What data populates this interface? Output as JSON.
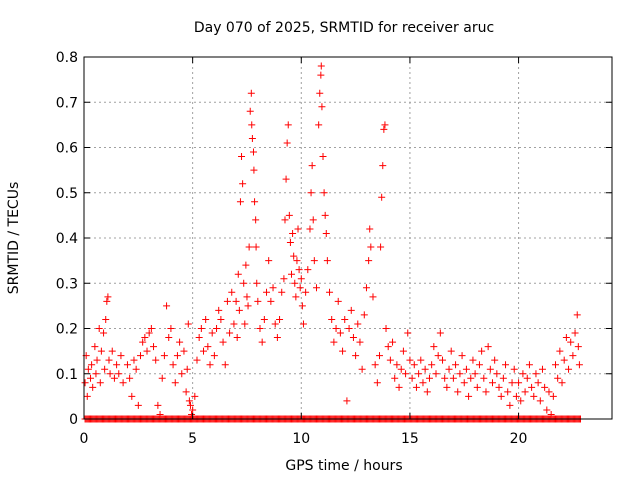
{
  "chart_data": {
    "type": "scatter",
    "title": "Day 070 of 2025, SRMTID for receiver aruc",
    "xlabel": "GPS time / hours",
    "ylabel": "SRMTID / TECUs",
    "xlim": [
      0,
      24.3
    ],
    "ylim": [
      0,
      0.8
    ],
    "x_ticks": [
      0,
      5,
      10,
      15,
      20
    ],
    "y_ticks": [
      0,
      0.1,
      0.2,
      0.3,
      0.4,
      0.5,
      0.6,
      0.7,
      0.8
    ],
    "x_tick_labels": [
      "0",
      "5",
      "10",
      "15",
      "20"
    ],
    "y_tick_labels": [
      "0",
      "0.1",
      "0.2",
      "0.3",
      "0.4",
      "0.5",
      "0.6",
      "0.7",
      "0.8"
    ],
    "grid": true,
    "marker": "+",
    "colors": {
      "points": "#ff0000",
      "grid": "#a0a0a0",
      "axes": "#000000"
    },
    "series": [
      {
        "name": "SRMTID",
        "points": [
          [
            0.05,
            0.08
          ],
          [
            0.1,
            0.14
          ],
          [
            0.15,
            0.05
          ],
          [
            0.2,
            0.11
          ],
          [
            0.3,
            0.09
          ],
          [
            0.35,
            0.12
          ],
          [
            0.4,
            0.07
          ],
          [
            0.5,
            0.16
          ],
          [
            0.55,
            0.1
          ],
          [
            0.6,
            0.13
          ],
          [
            0.7,
            0.2
          ],
          [
            0.75,
            0.08
          ],
          [
            0.8,
            0.15
          ],
          [
            0.9,
            0.19
          ],
          [
            0.95,
            0.11
          ],
          [
            1.0,
            0.22
          ],
          [
            1.05,
            0.26
          ],
          [
            1.1,
            0.27
          ],
          [
            1.15,
            0.13
          ],
          [
            1.2,
            0.1
          ],
          [
            1.3,
            0.15
          ],
          [
            1.4,
            0.09
          ],
          [
            1.5,
            0.12
          ],
          [
            1.6,
            0.1
          ],
          [
            1.7,
            0.14
          ],
          [
            1.8,
            0.08
          ],
          [
            2.0,
            0.12
          ],
          [
            2.1,
            0.09
          ],
          [
            2.2,
            0.05
          ],
          [
            2.3,
            0.13
          ],
          [
            2.4,
            0.11
          ],
          [
            2.5,
            0.03
          ],
          [
            2.6,
            0.14
          ],
          [
            2.7,
            0.17
          ],
          [
            2.8,
            0.18
          ],
          [
            2.9,
            0.15
          ],
          [
            3.0,
            0.19
          ],
          [
            3.1,
            0.2
          ],
          [
            3.2,
            0.16
          ],
          [
            3.3,
            0.13
          ],
          [
            3.4,
            0.03
          ],
          [
            3.5,
            0.01
          ],
          [
            3.6,
            0.09
          ],
          [
            3.7,
            0.14
          ],
          [
            3.8,
            0.25
          ],
          [
            3.9,
            0.18
          ],
          [
            4.0,
            0.2
          ],
          [
            4.1,
            0.12
          ],
          [
            4.2,
            0.08
          ],
          [
            4.3,
            0.14
          ],
          [
            4.4,
            0.17
          ],
          [
            4.5,
            0.1
          ],
          [
            4.6,
            0.15
          ],
          [
            4.7,
            0.06
          ],
          [
            4.75,
            0.11
          ],
          [
            4.8,
            0.21
          ],
          [
            4.85,
            0.04
          ],
          [
            4.9,
            0.03
          ],
          [
            4.95,
            0.01
          ],
          [
            5.0,
            0.02
          ],
          [
            5.1,
            0.05
          ],
          [
            5.2,
            0.13
          ],
          [
            5.3,
            0.18
          ],
          [
            5.4,
            0.2
          ],
          [
            5.5,
            0.15
          ],
          [
            5.6,
            0.22
          ],
          [
            5.7,
            0.16
          ],
          [
            5.8,
            0.12
          ],
          [
            5.9,
            0.19
          ],
          [
            6.0,
            0.14
          ],
          [
            6.1,
            0.2
          ],
          [
            6.2,
            0.24
          ],
          [
            6.3,
            0.22
          ],
          [
            6.4,
            0.17
          ],
          [
            6.5,
            0.12
          ],
          [
            6.6,
            0.26
          ],
          [
            6.7,
            0.19
          ],
          [
            6.8,
            0.28
          ],
          [
            6.9,
            0.21
          ],
          [
            7.0,
            0.26
          ],
          [
            7.05,
            0.18
          ],
          [
            7.1,
            0.32
          ],
          [
            7.15,
            0.24
          ],
          [
            7.2,
            0.48
          ],
          [
            7.25,
            0.58
          ],
          [
            7.3,
            0.52
          ],
          [
            7.35,
            0.3
          ],
          [
            7.4,
            0.21
          ],
          [
            7.45,
            0.34
          ],
          [
            7.5,
            0.27
          ],
          [
            7.55,
            0.25
          ],
          [
            7.6,
            0.38
          ],
          [
            7.65,
            0.68
          ],
          [
            7.7,
            0.72
          ],
          [
            7.72,
            0.65
          ],
          [
            7.75,
            0.62
          ],
          [
            7.8,
            0.59
          ],
          [
            7.82,
            0.55
          ],
          [
            7.85,
            0.48
          ],
          [
            7.9,
            0.44
          ],
          [
            7.92,
            0.38
          ],
          [
            7.95,
            0.3
          ],
          [
            8.0,
            0.26
          ],
          [
            8.1,
            0.2
          ],
          [
            8.2,
            0.17
          ],
          [
            8.3,
            0.22
          ],
          [
            8.4,
            0.28
          ],
          [
            8.5,
            0.35
          ],
          [
            8.6,
            0.26
          ],
          [
            8.7,
            0.29
          ],
          [
            8.8,
            0.21
          ],
          [
            8.9,
            0.18
          ],
          [
            9.0,
            0.22
          ],
          [
            9.1,
            0.28
          ],
          [
            9.2,
            0.31
          ],
          [
            9.25,
            0.44
          ],
          [
            9.3,
            0.53
          ],
          [
            9.35,
            0.61
          ],
          [
            9.4,
            0.65
          ],
          [
            9.45,
            0.45
          ],
          [
            9.5,
            0.39
          ],
          [
            9.55,
            0.32
          ],
          [
            9.6,
            0.41
          ],
          [
            9.65,
            0.36
          ],
          [
            9.7,
            0.3
          ],
          [
            9.75,
            0.27
          ],
          [
            9.8,
            0.35
          ],
          [
            9.85,
            0.42
          ],
          [
            9.9,
            0.33
          ],
          [
            9.95,
            0.29
          ],
          [
            10.0,
            0.31
          ],
          [
            10.05,
            0.25
          ],
          [
            10.1,
            0.21
          ],
          [
            10.2,
            0.28
          ],
          [
            10.3,
            0.33
          ],
          [
            10.4,
            0.42
          ],
          [
            10.45,
            0.5
          ],
          [
            10.5,
            0.56
          ],
          [
            10.55,
            0.44
          ],
          [
            10.6,
            0.35
          ],
          [
            10.7,
            0.29
          ],
          [
            10.8,
            0.65
          ],
          [
            10.85,
            0.72
          ],
          [
            10.9,
            0.76
          ],
          [
            10.92,
            0.78
          ],
          [
            10.95,
            0.69
          ],
          [
            11.0,
            0.58
          ],
          [
            11.05,
            0.5
          ],
          [
            11.1,
            0.45
          ],
          [
            11.15,
            0.41
          ],
          [
            11.2,
            0.35
          ],
          [
            11.3,
            0.28
          ],
          [
            11.4,
            0.22
          ],
          [
            11.5,
            0.17
          ],
          [
            11.6,
            0.2
          ],
          [
            11.7,
            0.26
          ],
          [
            11.8,
            0.19
          ],
          [
            11.9,
            0.15
          ],
          [
            12.0,
            0.22
          ],
          [
            12.1,
            0.04
          ],
          [
            12.2,
            0.2
          ],
          [
            12.3,
            0.24
          ],
          [
            12.4,
            0.18
          ],
          [
            12.5,
            0.14
          ],
          [
            12.6,
            0.21
          ],
          [
            12.7,
            0.17
          ],
          [
            12.8,
            0.11
          ],
          [
            12.9,
            0.23
          ],
          [
            13.0,
            0.29
          ],
          [
            13.1,
            0.35
          ],
          [
            13.15,
            0.42
          ],
          [
            13.2,
            0.38
          ],
          [
            13.3,
            0.27
          ],
          [
            13.4,
            0.12
          ],
          [
            13.5,
            0.08
          ],
          [
            13.6,
            0.14
          ],
          [
            13.65,
            0.38
          ],
          [
            13.7,
            0.49
          ],
          [
            13.75,
            0.56
          ],
          [
            13.8,
            0.64
          ],
          [
            13.85,
            0.65
          ],
          [
            13.9,
            0.2
          ],
          [
            14.0,
            0.16
          ],
          [
            14.1,
            0.13
          ],
          [
            14.2,
            0.17
          ],
          [
            14.3,
            0.09
          ],
          [
            14.4,
            0.12
          ],
          [
            14.5,
            0.07
          ],
          [
            14.6,
            0.11
          ],
          [
            14.7,
            0.15
          ],
          [
            14.8,
            0.1
          ],
          [
            14.9,
            0.19
          ],
          [
            15.0,
            0.13
          ],
          [
            15.1,
            0.09
          ],
          [
            15.2,
            0.12
          ],
          [
            15.3,
            0.07
          ],
          [
            15.4,
            0.1
          ],
          [
            15.5,
            0.13
          ],
          [
            15.6,
            0.08
          ],
          [
            15.7,
            0.11
          ],
          [
            15.8,
            0.06
          ],
          [
            15.9,
            0.09
          ],
          [
            16.0,
            0.12
          ],
          [
            16.1,
            0.16
          ],
          [
            16.2,
            0.1
          ],
          [
            16.3,
            0.14
          ],
          [
            16.4,
            0.19
          ],
          [
            16.5,
            0.13
          ],
          [
            16.6,
            0.09
          ],
          [
            16.7,
            0.07
          ],
          [
            16.8,
            0.11
          ],
          [
            16.9,
            0.15
          ],
          [
            17.0,
            0.09
          ],
          [
            17.1,
            0.12
          ],
          [
            17.2,
            0.06
          ],
          [
            17.3,
            0.1
          ],
          [
            17.4,
            0.14
          ],
          [
            17.5,
            0.08
          ],
          [
            17.6,
            0.11
          ],
          [
            17.7,
            0.05
          ],
          [
            17.8,
            0.09
          ],
          [
            17.9,
            0.13
          ],
          [
            18.0,
            0.1
          ],
          [
            18.1,
            0.07
          ],
          [
            18.2,
            0.12
          ],
          [
            18.3,
            0.15
          ],
          [
            18.4,
            0.09
          ],
          [
            18.5,
            0.06
          ],
          [
            18.6,
            0.16
          ],
          [
            18.7,
            0.11
          ],
          [
            18.8,
            0.08
          ],
          [
            18.9,
            0.13
          ],
          [
            19.0,
            0.1
          ],
          [
            19.1,
            0.07
          ],
          [
            19.2,
            0.05
          ],
          [
            19.3,
            0.09
          ],
          [
            19.4,
            0.12
          ],
          [
            19.5,
            0.06
          ],
          [
            19.6,
            0.03
          ],
          [
            19.7,
            0.08
          ],
          [
            19.8,
            0.11
          ],
          [
            19.9,
            0.05
          ],
          [
            20.0,
            0.08
          ],
          [
            20.1,
            0.04
          ],
          [
            20.2,
            0.1
          ],
          [
            20.3,
            0.06
          ],
          [
            20.4,
            0.09
          ],
          [
            20.5,
            0.12
          ],
          [
            20.6,
            0.07
          ],
          [
            20.7,
            0.05
          ],
          [
            20.8,
            0.1
          ],
          [
            20.9,
            0.08
          ],
          [
            21.0,
            0.04
          ],
          [
            21.1,
            0.11
          ],
          [
            21.2,
            0.07
          ],
          [
            21.3,
            0.02
          ],
          [
            21.4,
            0.06
          ],
          [
            21.5,
            0.01
          ],
          [
            21.6,
            0.05
          ],
          [
            21.7,
            0.12
          ],
          [
            21.8,
            0.09
          ],
          [
            21.9,
            0.15
          ],
          [
            22.0,
            0.08
          ],
          [
            22.1,
            0.13
          ],
          [
            22.2,
            0.18
          ],
          [
            22.3,
            0.11
          ],
          [
            22.4,
            0.17
          ],
          [
            22.5,
            0.14
          ],
          [
            22.6,
            0.19
          ],
          [
            22.7,
            0.23
          ],
          [
            22.75,
            0.16
          ],
          [
            22.8,
            0.12
          ]
        ]
      }
    ],
    "zero_band": {
      "x_start": 0.05,
      "x_end": 22.9,
      "value": 0
    }
  }
}
